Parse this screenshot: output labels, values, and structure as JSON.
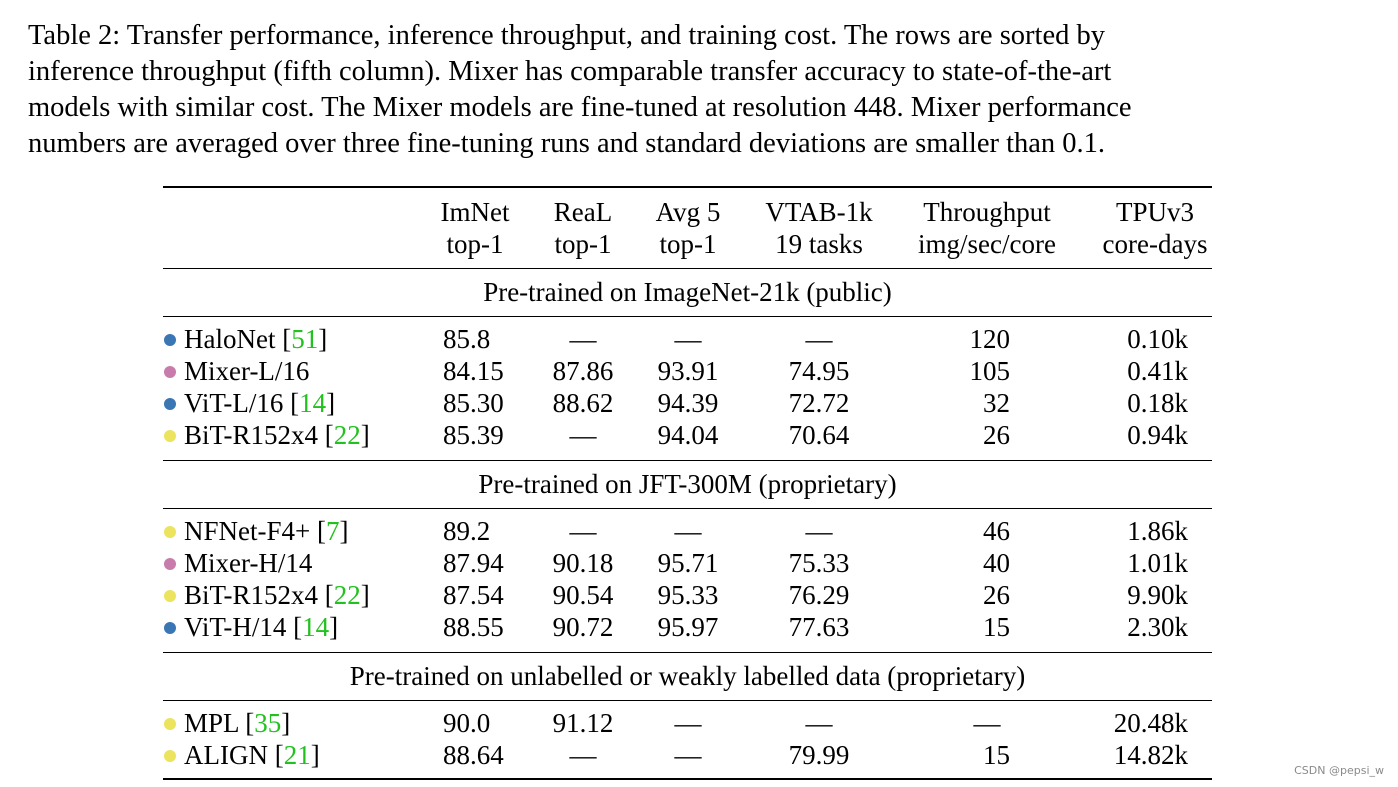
{
  "caption": {
    "lines": [
      "Table 2: Transfer performance, inference throughput, and training cost. The rows are sorted by",
      "inference throughput (fifth column). Mixer has comparable transfer accuracy to state-of-the-art",
      "models with similar cost. The Mixer models are fine-tuned at resolution 448. Mixer performance",
      "numbers are averaged over three fine-tuning runs and standard deviations are smaller than 0.1."
    ]
  },
  "colors": {
    "blue": "#3a76b3",
    "pink": "#c77cab",
    "yellow": "#ece35e",
    "reference_green": "#22c11f"
  },
  "table": {
    "headers": [
      {
        "line1": "ImNet",
        "line2": "top-1"
      },
      {
        "line1": "ReaL",
        "line2": "top-1"
      },
      {
        "line1": "Avg 5",
        "line2": "top-1"
      },
      {
        "line1": "VTAB-1k",
        "line2": "19 tasks"
      },
      {
        "line1": "Throughput",
        "line2": "img/sec/core"
      },
      {
        "line1": "TPUv3",
        "line2": "core-days"
      }
    ],
    "sections": [
      {
        "title": "Pre-trained on ImageNet-21k (public)",
        "rows": [
          {
            "dot": "blue",
            "model": "HaloNet ",
            "ref": "51",
            "values": [
              "85.8",
              "—",
              "—",
              "—",
              "120",
              "0.10k"
            ]
          },
          {
            "dot": "pink",
            "model": "Mixer-L/16",
            "ref": "",
            "values": [
              "84.15",
              "87.86",
              "93.91",
              "74.95",
              "105",
              "0.41k"
            ]
          },
          {
            "dot": "blue",
            "model": "ViT-L/16 ",
            "ref": "14",
            "values": [
              "85.30",
              "88.62",
              "94.39",
              "72.72",
              "32",
              "0.18k"
            ]
          },
          {
            "dot": "yellow",
            "model": "BiT-R152x4 ",
            "ref": "22",
            "values": [
              "85.39",
              "—",
              "94.04",
              "70.64",
              "26",
              "0.94k"
            ]
          }
        ]
      },
      {
        "title": "Pre-trained on JFT-300M (proprietary)",
        "rows": [
          {
            "dot": "yellow",
            "model": "NFNet-F4+ ",
            "ref": "7",
            "values": [
              "89.2",
              "—",
              "—",
              "—",
              "46",
              "1.86k"
            ]
          },
          {
            "dot": "pink",
            "model": "Mixer-H/14",
            "ref": "",
            "values": [
              "87.94",
              "90.18",
              "95.71",
              "75.33",
              "40",
              "1.01k"
            ]
          },
          {
            "dot": "yellow",
            "model": "BiT-R152x4 ",
            "ref": "22",
            "values": [
              "87.54",
              "90.54",
              "95.33",
              "76.29",
              "26",
              "9.90k"
            ]
          },
          {
            "dot": "blue",
            "model": "ViT-H/14 ",
            "ref": "14",
            "values": [
              "88.55",
              "90.72",
              "95.97",
              "77.63",
              "15",
              "2.30k"
            ]
          }
        ]
      },
      {
        "title": "Pre-trained on unlabelled or weakly labelled data (proprietary)",
        "rows": [
          {
            "dot": "yellow",
            "model": "MPL ",
            "ref": "35",
            "values": [
              "90.0",
              "91.12",
              "—",
              "—",
              "—",
              "20.48k"
            ]
          },
          {
            "dot": "yellow",
            "model": "ALIGN ",
            "ref": "21",
            "values": [
              "88.64",
              "—",
              "—",
              "79.99",
              "15",
              "14.82k"
            ]
          }
        ]
      }
    ]
  },
  "watermark": "CSDN @pepsi_w"
}
